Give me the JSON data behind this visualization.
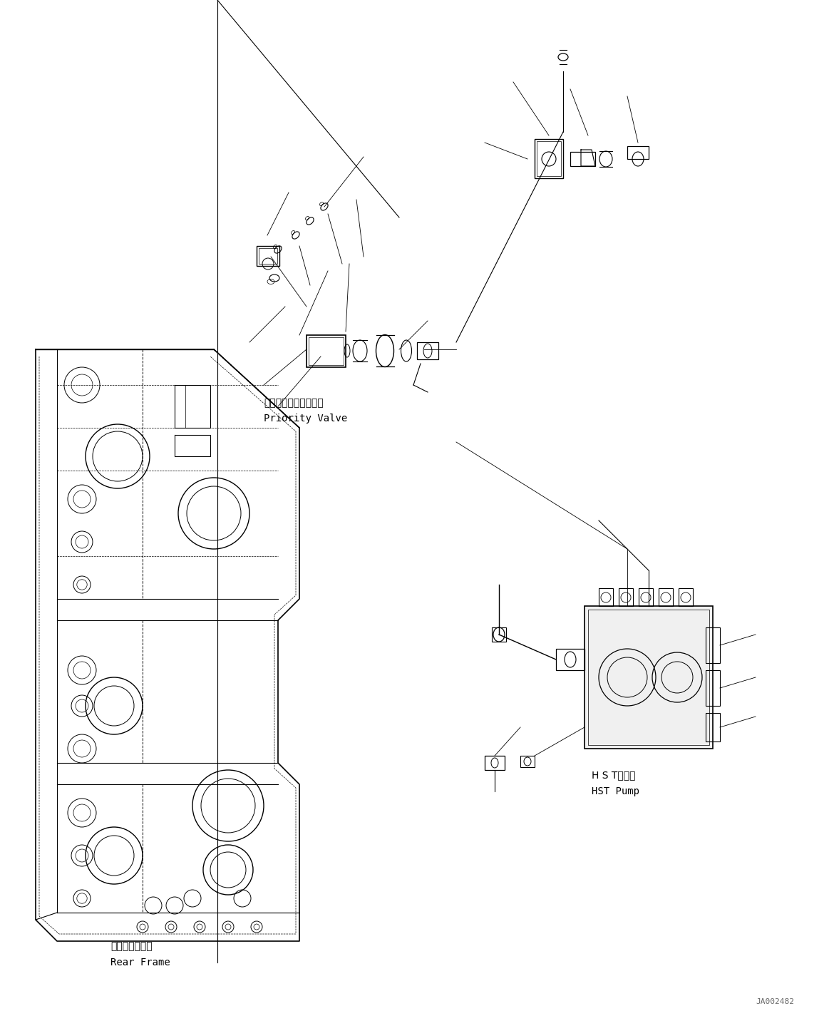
{
  "title": "",
  "background_color": "#ffffff",
  "line_color": "#000000",
  "figure_width": 11.63,
  "figure_height": 14.18,
  "watermark": "JA002482",
  "labels": {
    "priority_valve_jp": "プライオリティバルブ",
    "priority_valve_en": "Priority Valve",
    "rear_frame_jp": "リヤーフレーム",
    "rear_frame_en": "Rear Frame",
    "hst_pump_jp": "H S Tポンプ",
    "hst_pump_en": "HST Pump"
  }
}
